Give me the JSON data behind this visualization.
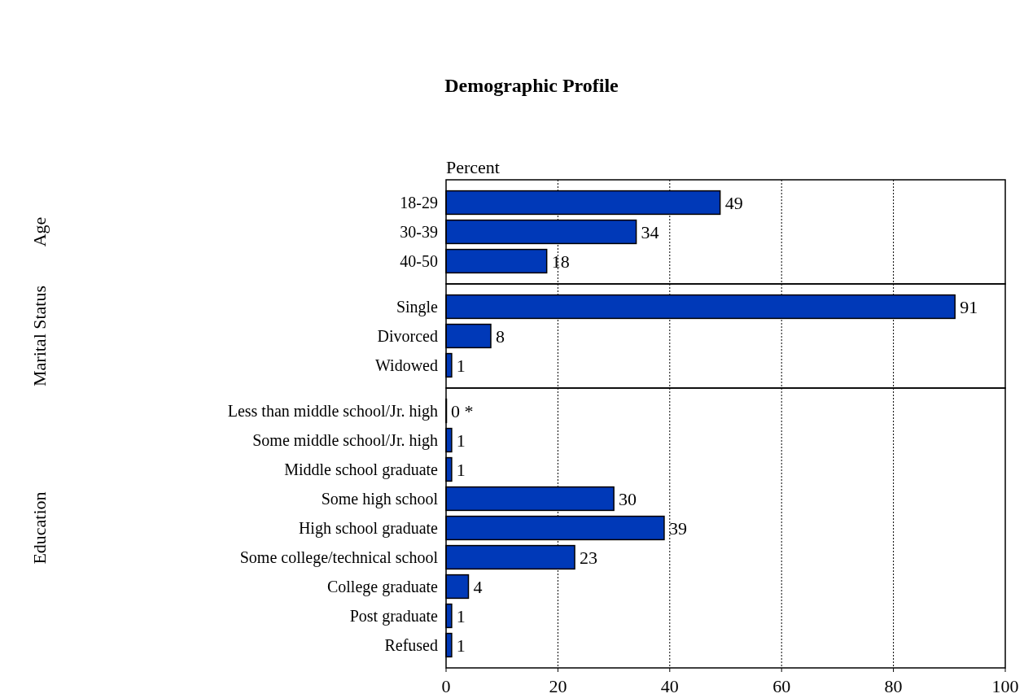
{
  "chart_data": [
    {
      "type": "bar",
      "orientation": "horizontal",
      "title": "Demographic Profile",
      "xlabel": "Percent",
      "ylabel": "Age",
      "categories": [
        "18-29",
        "30-39",
        "40-50"
      ],
      "values": [
        49,
        34,
        18
      ],
      "color": "#0039b8",
      "xlim": [
        0,
        100
      ],
      "xticks": [
        0,
        20,
        40,
        60,
        80,
        100
      ],
      "grid": "x",
      "tick_labels": "y",
      "data_labels": true
    },
    {
      "type": "bar",
      "orientation": "horizontal",
      "ylabel": "Marital Status",
      "categories": [
        "Single",
        "Divorced",
        "Widowed"
      ],
      "values": [
        91,
        8,
        1
      ],
      "color": "#0039b8",
      "xlim": [
        0,
        100
      ],
      "xticks": [
        0,
        20,
        40,
        60,
        80,
        100
      ],
      "grid": "x",
      "tick_labels": "y",
      "data_labels": true
    },
    {
      "type": "bar",
      "orientation": "horizontal",
      "ylabel": "Education",
      "categories": [
        "Less than middle school/Jr. high",
        "Some middle school/Jr. high",
        "Middle school graduate",
        "Some high school",
        "High school graduate",
        "Some college/technical school",
        "College graduate",
        "Post graduate",
        "Refused"
      ],
      "values": [
        0,
        1,
        1,
        30,
        39,
        23,
        4,
        1,
        1
      ],
      "value_labels": [
        "0 *",
        "1",
        "1",
        "30",
        "39",
        "23",
        "4",
        "1",
        "1"
      ],
      "color": "#0039b8",
      "xlim": [
        0,
        100
      ],
      "xticks": [
        0,
        20,
        40,
        60,
        80,
        100
      ],
      "grid": "x"
    }
  ]
}
